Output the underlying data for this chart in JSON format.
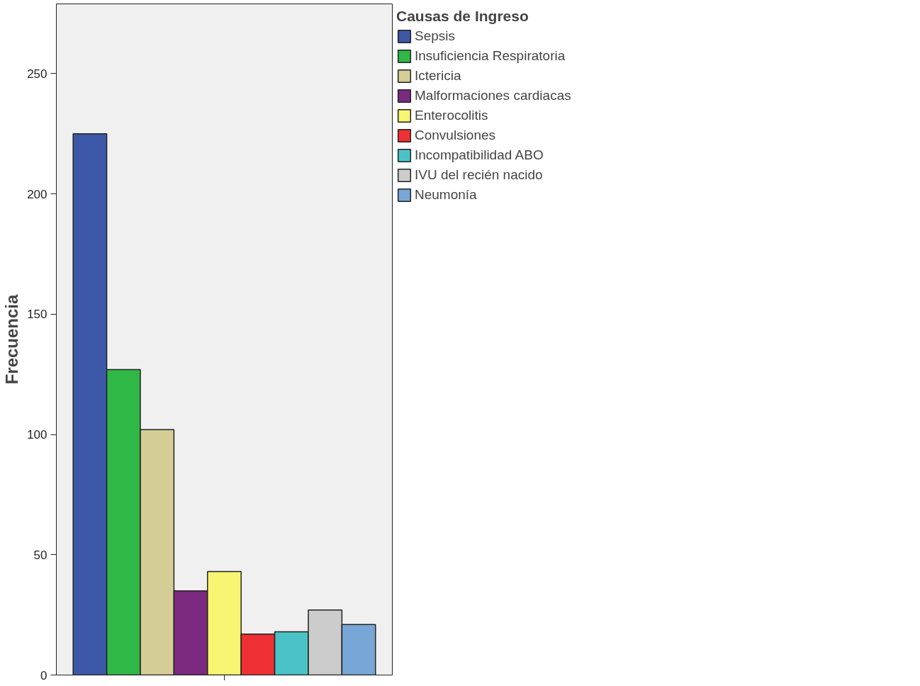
{
  "chart_data": {
    "type": "bar",
    "ylabel": "Frecuencia",
    "legend_title": "Causas de Ingreso",
    "categories": [
      null
    ],
    "series": [
      {
        "name": "Sepsis",
        "color": "#3d58a8",
        "values": [
          225
        ]
      },
      {
        "name": "Insuficiencia Respiratoria",
        "color": "#2fb845",
        "values": [
          127
        ]
      },
      {
        "name": "Ictericia",
        "color": "#d4cd96",
        "values": [
          102
        ]
      },
      {
        "name": "Malformaciones cardiacas",
        "color": "#7b2a80",
        "values": [
          35
        ]
      },
      {
        "name": "Enterocolitis",
        "color": "#f8f572",
        "values": [
          43
        ]
      },
      {
        "name": "Convulsiones",
        "color": "#ee3035",
        "values": [
          17
        ]
      },
      {
        "name": "Incompatibilidad ABO",
        "color": "#4bc3c6",
        "values": [
          18
        ]
      },
      {
        "name": "IVU del recién nacido",
        "color": "#cccccc",
        "values": [
          27
        ]
      },
      {
        "name": "Neumonía",
        "color": "#78a6d6",
        "values": [
          21
        ]
      }
    ],
    "ylim": [
      0,
      279
    ],
    "yticks": [
      0,
      50,
      100,
      150,
      200,
      250
    ],
    "grid": false,
    "legend": "right"
  }
}
